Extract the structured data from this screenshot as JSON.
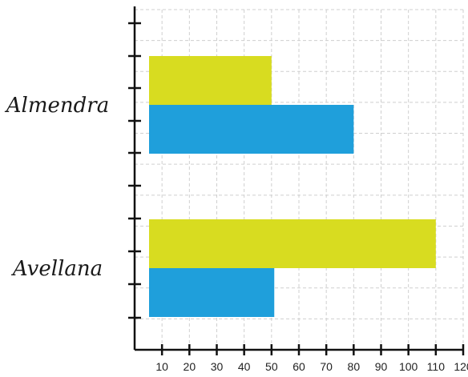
{
  "chart_data": {
    "type": "bar",
    "orientation": "horizontal",
    "categories": [
      "Almendra",
      "Avellana"
    ],
    "series": [
      {
        "color": "#d8dc20",
        "values": [
          50,
          110
        ]
      },
      {
        "color": "#1f9fdb",
        "values": [
          80,
          51
        ]
      }
    ],
    "x_ticks": [
      10,
      20,
      30,
      40,
      50,
      60,
      70,
      80,
      90,
      100,
      110,
      120
    ],
    "xlim": [
      0,
      120
    ],
    "grid": true,
    "title": "",
    "xlabel": "",
    "ylabel": ""
  }
}
